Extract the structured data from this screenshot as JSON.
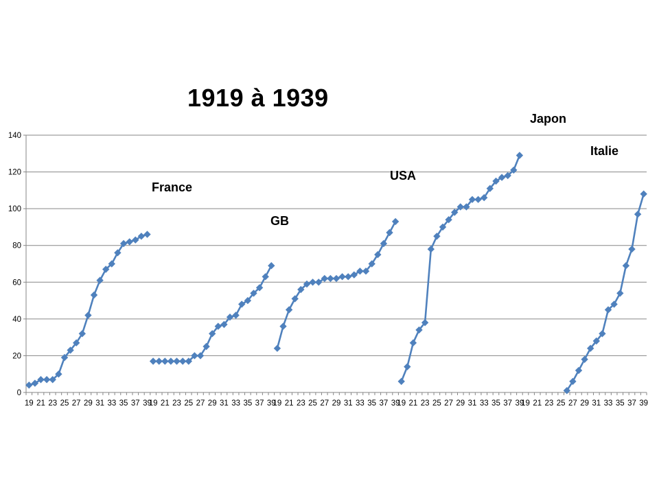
{
  "title": "1919 à 1939",
  "chart_data": {
    "type": "line",
    "title": "1919 à 1939",
    "ylim": [
      0,
      140
    ],
    "yticks": [
      0,
      20,
      40,
      60,
      80,
      100,
      120,
      140
    ],
    "grid": true,
    "legend": "none",
    "color": "#4f81bd",
    "categories": [
      "19",
      "20",
      "21",
      "22",
      "23",
      "24",
      "25",
      "26",
      "27",
      "28",
      "29",
      "30",
      "31",
      "32",
      "33",
      "34",
      "35",
      "36",
      "37",
      "38",
      "39"
    ],
    "xtick_labels_shown": [
      "19",
      "21",
      "23",
      "25",
      "27",
      "29",
      "31",
      "33",
      "35",
      "37",
      "39"
    ],
    "series": [
      {
        "name": "France",
        "values": [
          4,
          5,
          7,
          7,
          7,
          10,
          19,
          23,
          27,
          32,
          42,
          53,
          61,
          67,
          70,
          76,
          81,
          82,
          83,
          85,
          86
        ]
      },
      {
        "name": "GB",
        "values": [
          17,
          17,
          17,
          17,
          17,
          17,
          17,
          20,
          20,
          25,
          32,
          36,
          37,
          41,
          42,
          48,
          50,
          54,
          57,
          63,
          69
        ]
      },
      {
        "name": "USA",
        "values": [
          24,
          36,
          45,
          51,
          56,
          59,
          60,
          60,
          62,
          62,
          62,
          63,
          63,
          64,
          66,
          66,
          70,
          75,
          81,
          87,
          93
        ]
      },
      {
        "name": "Japon",
        "values": [
          6,
          14,
          27,
          34,
          38,
          78,
          85,
          90,
          94,
          98,
          101,
          101,
          105,
          105,
          106,
          111,
          115,
          117,
          118,
          121,
          129
        ]
      },
      {
        "name": "Italie",
        "values": [
          null,
          null,
          null,
          null,
          null,
          null,
          null,
          1,
          6,
          12,
          18,
          24,
          28,
          32,
          45,
          48,
          54,
          69,
          78,
          97,
          108
        ]
      }
    ]
  }
}
